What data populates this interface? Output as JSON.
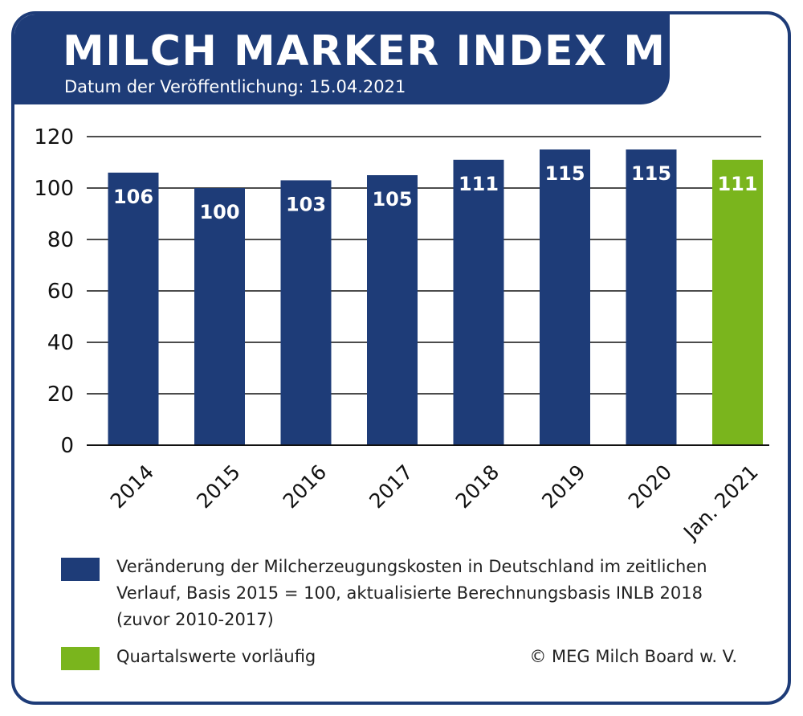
{
  "header": {
    "title": "MILCH MARKER INDEX MMI",
    "subtitle": "Datum der Veröffentlichung: 15.04.2021"
  },
  "chart_data": {
    "type": "bar",
    "categories": [
      "2014",
      "2015",
      "2016",
      "2017",
      "2018",
      "2019",
      "2020",
      "Jan. 2021"
    ],
    "values": [
      106,
      100,
      103,
      105,
      111,
      115,
      115,
      111
    ],
    "bar_colors": [
      "#1e3c78",
      "#1e3c78",
      "#1e3c78",
      "#1e3c78",
      "#1e3c78",
      "#1e3c78",
      "#1e3c78",
      "#7ab51d"
    ],
    "ylim": [
      0,
      120
    ],
    "yticks": [
      0,
      20,
      40,
      60,
      80,
      100,
      120
    ],
    "grid": true,
    "data_labels": true
  },
  "legend": {
    "items": [
      {
        "color": "#1e3c78",
        "lines": [
          "Veränderung der Milcherzeugungskosten in Deutschland im zeitlichen",
          "Verlauf, Basis 2015 = 100, aktualisierte Berechnungsbasis INLB 2018",
          "(zuvor 2010-2017)"
        ]
      },
      {
        "color": "#7ab51d",
        "lines": [
          "Quartalswerte vorläufig"
        ]
      }
    ]
  },
  "copyright": "© MEG Milch Board w. V."
}
